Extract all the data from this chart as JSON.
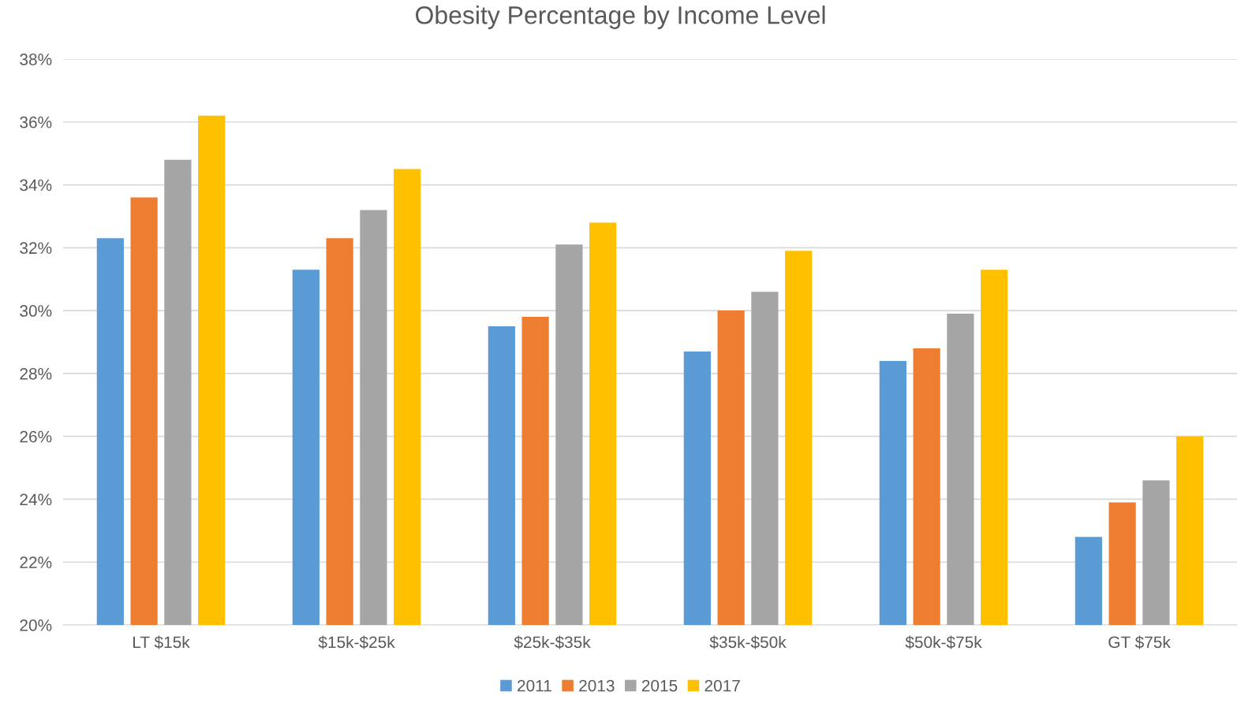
{
  "chart_data": {
    "type": "bar",
    "title": "Obesity Percentage by Income Level",
    "categories": [
      "LT $15k",
      "$15k-$25k",
      "$25k-$35k",
      "$35k-$50k",
      "$50k-$75k",
      "GT $75k"
    ],
    "series": [
      {
        "name": "2011",
        "color": "#5b9bd5",
        "values": [
          32.3,
          31.3,
          29.5,
          28.7,
          28.4,
          22.8
        ]
      },
      {
        "name": "2013",
        "color": "#ed7d31",
        "values": [
          33.6,
          32.3,
          29.8,
          30.0,
          28.8,
          23.9
        ]
      },
      {
        "name": "2015",
        "color": "#a5a5a5",
        "values": [
          34.8,
          33.2,
          32.1,
          30.6,
          29.9,
          24.6
        ]
      },
      {
        "name": "2017",
        "color": "#ffc000",
        "values": [
          36.2,
          34.5,
          32.8,
          31.9,
          31.3,
          26.0
        ]
      }
    ],
    "ylim": [
      20,
      38
    ],
    "yticks": [
      {
        "value": 20,
        "label": "20%"
      },
      {
        "value": 22,
        "label": "22%"
      },
      {
        "value": 24,
        "label": "24%"
      },
      {
        "value": 26,
        "label": "26%"
      },
      {
        "value": 28,
        "label": "28%"
      },
      {
        "value": 30,
        "label": "30%"
      },
      {
        "value": 32,
        "label": "32%"
      },
      {
        "value": 34,
        "label": "34%"
      },
      {
        "value": 36,
        "label": "36%"
      },
      {
        "value": 38,
        "label": "38%"
      }
    ],
    "grid": "y",
    "legend": "bottom"
  }
}
